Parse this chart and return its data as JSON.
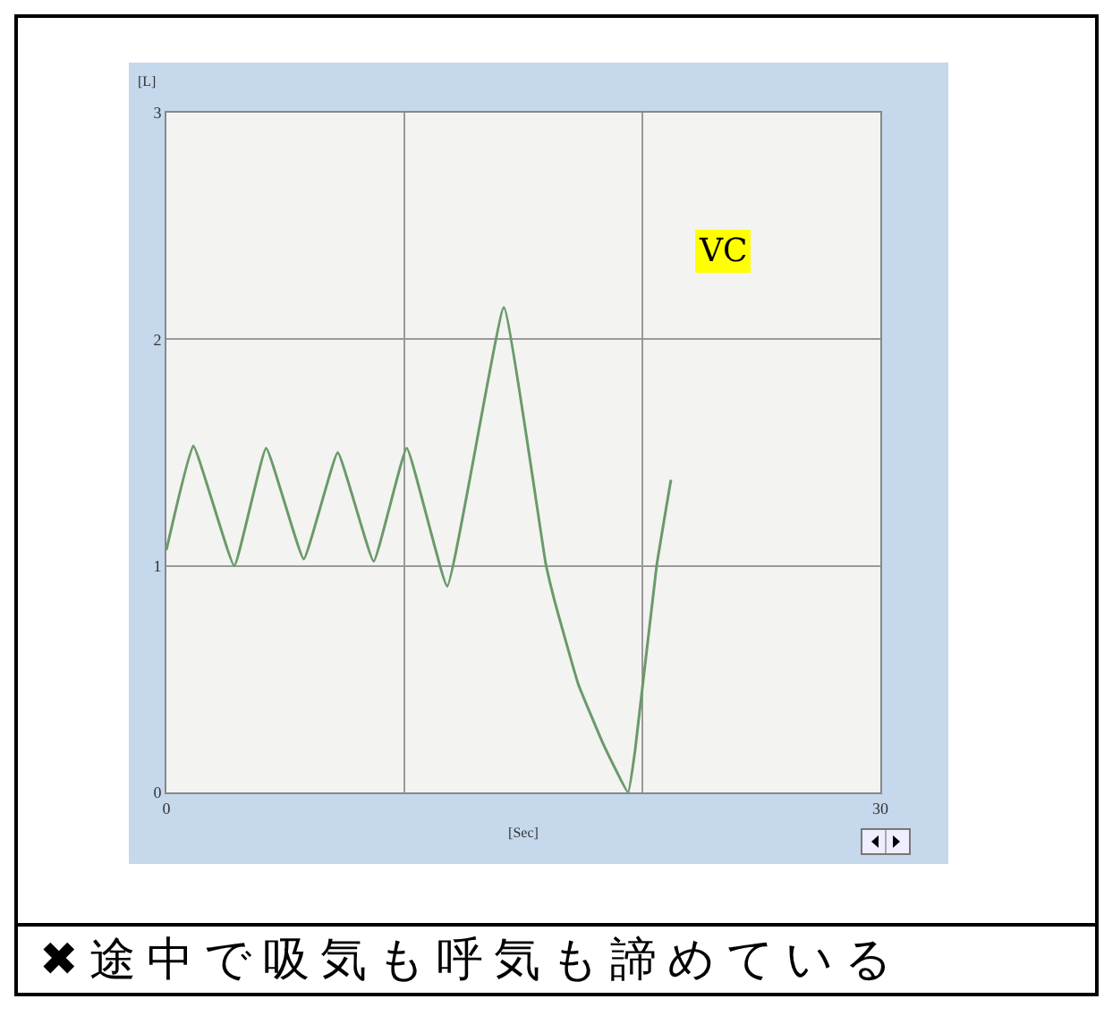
{
  "chart_data": {
    "type": "line",
    "xlabel": "[Sec]",
    "ylabel": "[L]",
    "x": [
      0,
      1.13,
      2.85,
      4.19,
      5.77,
      7.2,
      8.71,
      10.1,
      11.8,
      14.18,
      15.94,
      16.3,
      17.3,
      18.33,
      19.4,
      19.7,
      20.6,
      21.2
    ],
    "series": [
      {
        "color": "#6a9a6a",
        "values": [
          1.07,
          1.53,
          1.0,
          1.52,
          1.03,
          1.5,
          1.02,
          1.52,
          0.91,
          2.14,
          1.01,
          0.85,
          0.48,
          0.22,
          0.0,
          0.19,
          1.0,
          1.38
        ]
      }
    ],
    "xlim": [
      0,
      30
    ],
    "xticks": [
      0,
      {
        "value": 10,
        "label": null
      },
      {
        "value": 20,
        "label": null
      },
      30
    ],
    "ylim": [
      0,
      3
    ],
    "yticks": [
      0,
      1,
      2,
      3
    ],
    "grid": true,
    "line_style": "solid",
    "marker": "none",
    "annotations": [
      "VC",
      "✖途中で吸気も呼気も諦めている"
    ]
  }
}
